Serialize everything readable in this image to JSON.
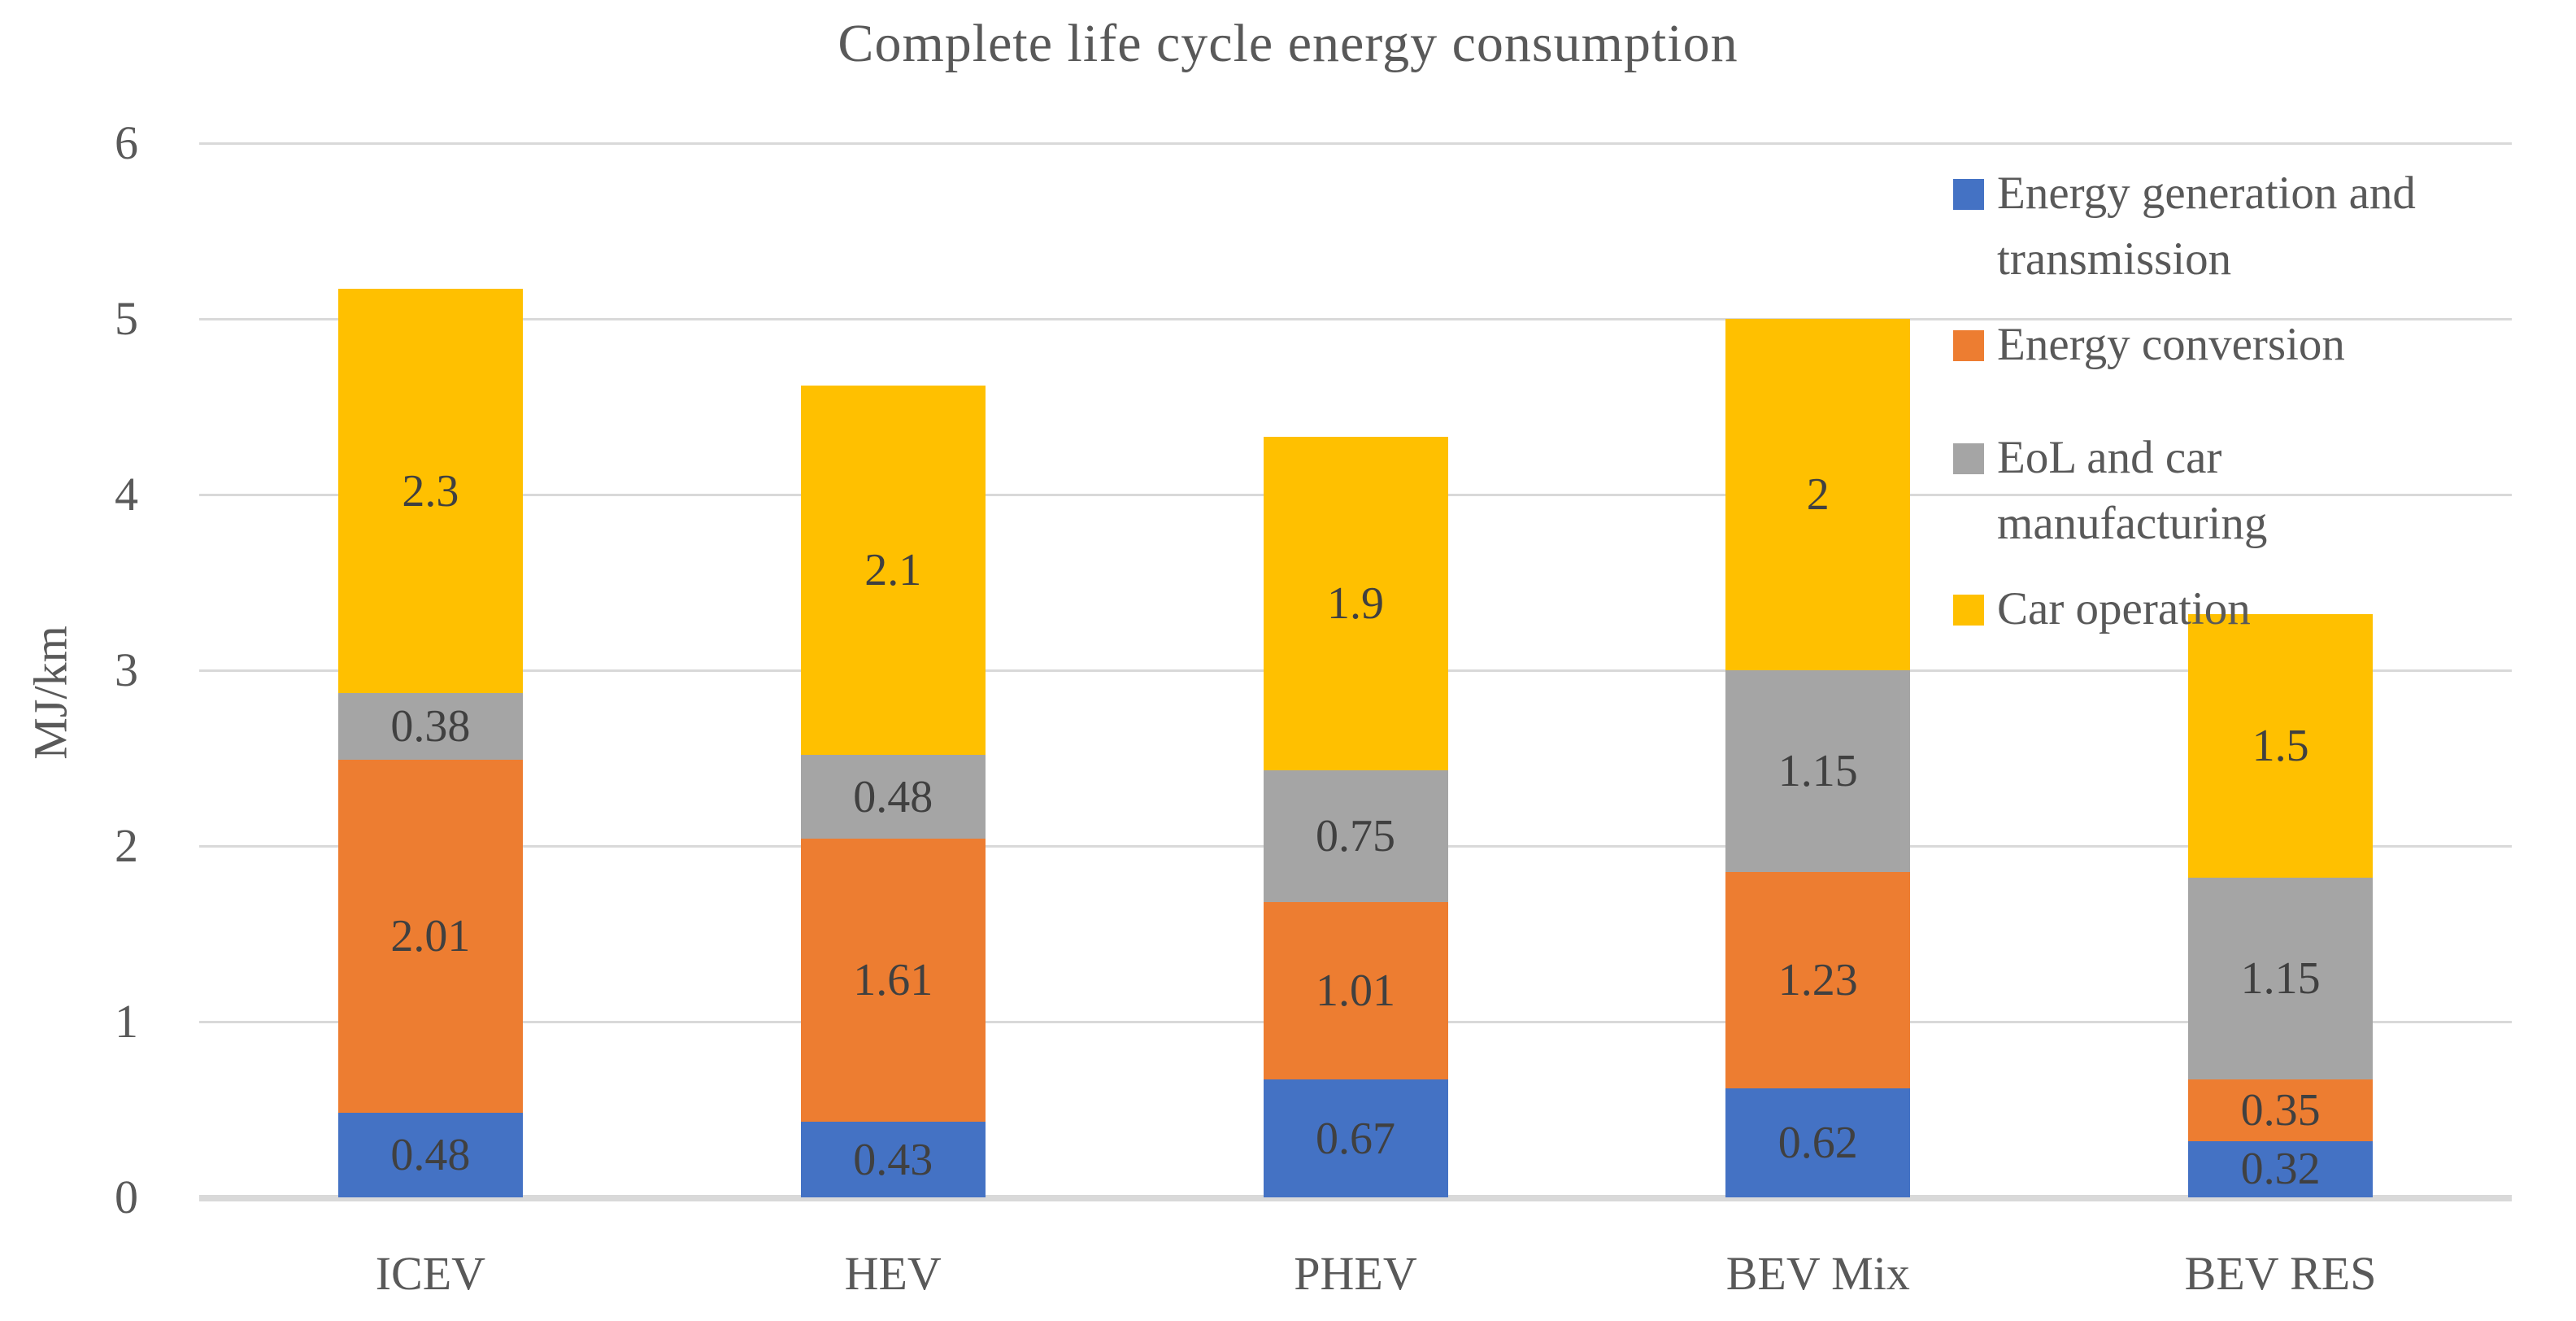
{
  "chart_data": {
    "type": "bar",
    "stacked": true,
    "title": "Complete life cycle energy consumption",
    "xlabel": "",
    "ylabel": "MJ/km",
    "ylim": [
      0,
      6
    ],
    "y_ticks": [
      "0",
      "1",
      "2",
      "3",
      "4",
      "5",
      "6"
    ],
    "grid": true,
    "legend_position": "top-right",
    "categories": [
      "ICEV",
      "HEV",
      "PHEV",
      "BEV Mix",
      "BEV RES"
    ],
    "series": [
      {
        "name": "Energy generation and transmission",
        "color": "#4472C4",
        "values": [
          0.48,
          0.43,
          0.67,
          0.62,
          0.32
        ],
        "labels": [
          "0.48",
          "0.43",
          "0.67",
          "0.62",
          "0.32"
        ]
      },
      {
        "name": "Energy conversion",
        "color": "#ED7D31",
        "values": [
          2.01,
          1.61,
          1.01,
          1.23,
          0.35
        ],
        "labels": [
          "2.01",
          "1.61",
          "1.01",
          "1.23",
          "0.35"
        ]
      },
      {
        "name": "EoL and car manufacturing",
        "color": "#A5A5A5",
        "values": [
          0.38,
          0.48,
          0.75,
          1.15,
          1.15
        ],
        "labels": [
          "0.38",
          "0.48",
          "0.75",
          "1.15",
          "1.15"
        ]
      },
      {
        "name": "Car operation",
        "color": "#FFC000",
        "values": [
          2.3,
          2.1,
          1.9,
          2,
          1.5
        ],
        "labels": [
          "2.3",
          "2.1",
          "1.9",
          "2",
          "1.5"
        ]
      }
    ],
    "totals": [
      5.17,
      4.62,
      4.33,
      5.0,
      3.32
    ],
    "colors": {
      "grid": "#D9D9D9",
      "axis_text": "#595959",
      "data_label": "#404040"
    }
  }
}
